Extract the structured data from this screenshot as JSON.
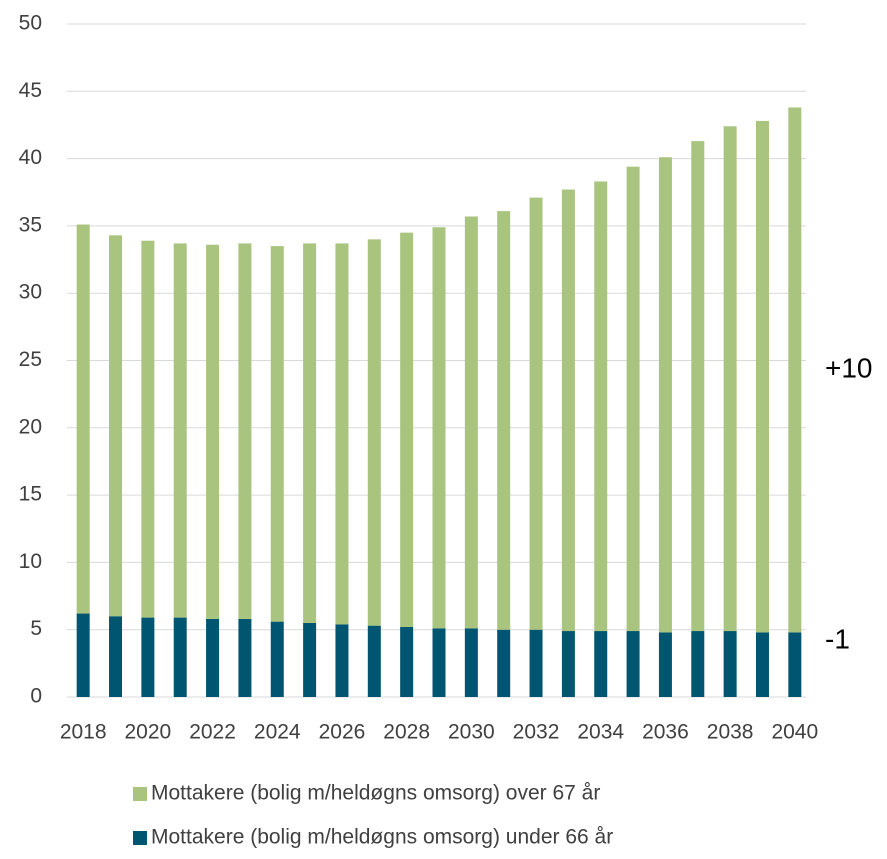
{
  "chart_data": {
    "type": "stacked_bar",
    "categories": [
      "2018",
      null,
      "2020",
      null,
      "2022",
      null,
      "2024",
      null,
      "2026",
      null,
      "2028",
      null,
      "2030",
      null,
      "2032",
      null,
      "2034",
      null,
      "2036",
      null,
      "2038",
      null,
      "2040"
    ],
    "series": [
      {
        "name": "Mottakere (bolig m/heldøgns omsorg) under 66 år",
        "color": "#005670",
        "values": [
          6.2,
          6.0,
          5.9,
          5.9,
          5.8,
          5.8,
          5.6,
          5.5,
          5.4,
          5.3,
          5.2,
          5.1,
          5.1,
          5.0,
          5.0,
          4.9,
          4.9,
          4.9,
          4.8,
          4.9,
          4.9,
          4.8,
          4.8
        ]
      },
      {
        "name": "Mottakere (bolig m/heldøgns omsorg) over 67 år",
        "color": "#a9c47f",
        "values": [
          28.9,
          28.3,
          28.0,
          27.8,
          27.8,
          27.9,
          27.9,
          28.2,
          28.3,
          28.7,
          29.3,
          29.8,
          30.6,
          31.1,
          32.1,
          32.8,
          33.4,
          34.5,
          35.3,
          36.4,
          37.5,
          38.0,
          39.0
        ]
      }
    ],
    "ylim": [
      0,
      50
    ],
    "yticks": [
      0,
      5,
      10,
      15,
      20,
      25,
      30,
      35,
      40,
      45,
      50
    ],
    "grid": true,
    "annotations": [
      "+10",
      "-1"
    ]
  }
}
